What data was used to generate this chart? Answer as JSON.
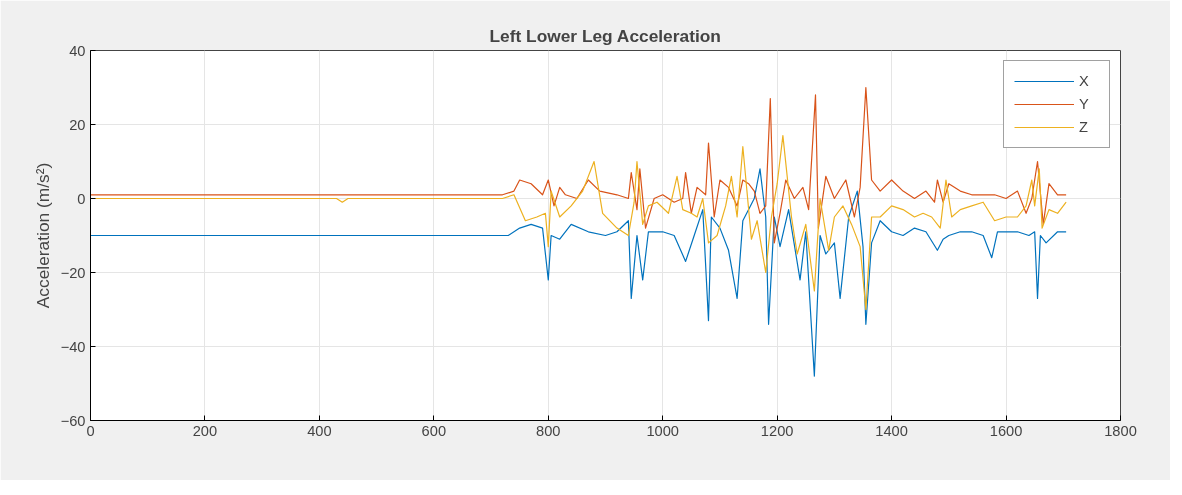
{
  "chart_data": {
    "type": "line",
    "title": "Left Lower Leg Acceleration",
    "ylabel": "Acceleration (m/s²)",
    "xlim": [
      0,
      1800
    ],
    "ylim": [
      -60,
      40
    ],
    "xticks": [
      0,
      200,
      400,
      600,
      800,
      1000,
      1200,
      1400,
      1600,
      1800
    ],
    "yticks": [
      -60,
      -40,
      -20,
      0,
      20,
      40
    ],
    "grid": true,
    "legend": "top right",
    "series": [
      {
        "name": "X",
        "color": "#0072bd",
        "x": [
          0,
          100,
          300,
          500,
          700,
          730,
          750,
          770,
          790,
          800,
          805,
          820,
          840,
          870,
          900,
          920,
          940,
          945,
          955,
          965,
          975,
          1000,
          1020,
          1040,
          1055,
          1070,
          1080,
          1085,
          1100,
          1115,
          1130,
          1140,
          1160,
          1170,
          1180,
          1185,
          1195,
          1205,
          1220,
          1240,
          1250,
          1265,
          1275,
          1285,
          1300,
          1310,
          1325,
          1340,
          1350,
          1355,
          1365,
          1380,
          1400,
          1420,
          1440,
          1460,
          1480,
          1490,
          1500,
          1520,
          1540,
          1560,
          1575,
          1585,
          1620,
          1640,
          1650,
          1655,
          1660,
          1670,
          1690,
          1705
        ],
        "values": [
          -10,
          -10,
          -10,
          -10,
          -10,
          -10,
          -8,
          -7,
          -8,
          -22,
          -10,
          -11,
          -7,
          -9,
          -10,
          -9,
          -6,
          -27,
          -10,
          -22,
          -9,
          -9,
          -10,
          -17,
          -10,
          -3,
          -33,
          -5,
          -8,
          -14,
          -27,
          -6,
          0,
          8,
          -5,
          -34,
          -5,
          -13,
          -3,
          -22,
          -9,
          -48,
          -10,
          -15,
          -12,
          -27,
          -5,
          2,
          -13,
          -34,
          -12,
          -6,
          -9,
          -10,
          -8,
          -9,
          -14,
          -11,
          -10,
          -9,
          -9,
          -10,
          -16,
          -9,
          -9,
          -10,
          -9,
          -27,
          -10,
          -12,
          -9,
          -9
        ]
      },
      {
        "name": "Y",
        "color": "#d95319",
        "x": [
          0,
          300,
          600,
          720,
          740,
          750,
          770,
          790,
          800,
          810,
          820,
          830,
          850,
          870,
          890,
          920,
          940,
          945,
          955,
          960,
          970,
          985,
          1000,
          1020,
          1035,
          1040,
          1050,
          1060,
          1075,
          1080,
          1090,
          1100,
          1115,
          1130,
          1140,
          1150,
          1160,
          1170,
          1180,
          1188,
          1195,
          1205,
          1215,
          1230,
          1245,
          1255,
          1267,
          1272,
          1285,
          1300,
          1320,
          1335,
          1345,
          1355,
          1365,
          1380,
          1400,
          1420,
          1440,
          1460,
          1475,
          1480,
          1490,
          1500,
          1520,
          1540,
          1560,
          1580,
          1600,
          1620,
          1635,
          1645,
          1655,
          1665,
          1675,
          1690,
          1705
        ],
        "values": [
          1,
          1,
          1,
          1,
          2,
          5,
          4,
          1,
          5,
          -2,
          3,
          1,
          0,
          5,
          2,
          1,
          0,
          7,
          -3,
          8,
          -8,
          0,
          1,
          -1,
          0,
          7,
          -4,
          3,
          1,
          15,
          -5,
          5,
          3,
          -2,
          5,
          4,
          2,
          -4,
          -2,
          27,
          -12,
          -4,
          5,
          0,
          3,
          -3,
          28,
          -8,
          6,
          0,
          5,
          -5,
          3,
          30,
          5,
          2,
          5,
          2,
          0,
          2,
          -1,
          5,
          -1,
          4,
          2,
          1,
          1,
          1,
          0,
          2,
          -4,
          0,
          10,
          -7,
          4,
          1,
          1
        ]
      },
      {
        "name": "Z",
        "color": "#edb120",
        "x": [
          0,
          300,
          430,
          440,
          450,
          600,
          720,
          740,
          760,
          780,
          795,
          800,
          805,
          820,
          840,
          860,
          880,
          895,
          920,
          940,
          950,
          955,
          965,
          975,
          990,
          1010,
          1025,
          1035,
          1050,
          1060,
          1070,
          1080,
          1095,
          1110,
          1120,
          1130,
          1140,
          1155,
          1165,
          1180,
          1190,
          1200,
          1210,
          1225,
          1235,
          1250,
          1265,
          1275,
          1290,
          1300,
          1315,
          1330,
          1345,
          1355,
          1365,
          1380,
          1400,
          1420,
          1440,
          1455,
          1470,
          1485,
          1495,
          1505,
          1520,
          1540,
          1560,
          1580,
          1600,
          1620,
          1635,
          1645,
          1650,
          1658,
          1663,
          1675,
          1690,
          1705
        ],
        "values": [
          0,
          0,
          0,
          -1,
          0,
          0,
          0,
          1,
          -6,
          -5,
          -4,
          -13,
          2,
          -5,
          -2,
          2,
          10,
          -4,
          -8,
          -10,
          -1,
          10,
          -7,
          -2,
          -1,
          -4,
          6,
          -3,
          -4,
          -5,
          0,
          -12,
          -10,
          -2,
          6,
          -5,
          14,
          -11,
          -6,
          -20,
          -5,
          4,
          17,
          -5,
          -15,
          -7,
          -25,
          0,
          -14,
          -5,
          -2,
          -7,
          -13,
          -30,
          -5,
          -5,
          -2,
          -3,
          -5,
          -4,
          -5,
          -8,
          5,
          -5,
          -3,
          -2,
          -1,
          -6,
          -5,
          -5,
          -2,
          5,
          -2,
          8,
          -8,
          -3,
          -4,
          -1
        ]
      }
    ]
  }
}
